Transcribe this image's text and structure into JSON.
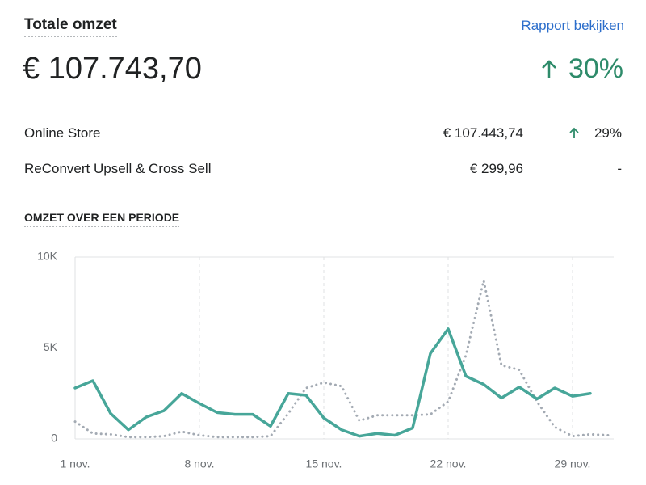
{
  "header": {
    "title": "Totale omzet",
    "link": "Rapport bekijken",
    "total": "€ 107.743,70",
    "change": "30%"
  },
  "table": {
    "rows": [
      [
        "Online Store",
        "€ 107.443,74",
        "29%"
      ],
      [
        "ReConvert Upsell & Cross Sell",
        "€ 299,96",
        "-"
      ]
    ]
  },
  "section_title": "OMZET OVER EEN PERIODE",
  "chart_data": {
    "type": "line",
    "categories": [
      "1 nov.",
      null,
      null,
      null,
      null,
      null,
      null,
      "8 nov.",
      null,
      null,
      null,
      null,
      null,
      null,
      "15 nov.",
      null,
      null,
      null,
      null,
      null,
      null,
      "22 nov.",
      null,
      null,
      null,
      null,
      null,
      null,
      "29 nov.",
      null,
      null
    ],
    "series": [
      {
        "color": "#47a699",
        "style": "solid",
        "values": [
          2800,
          3200,
          1400,
          500,
          1200,
          1550,
          2500,
          1950,
          1450,
          1350,
          1350,
          700,
          2500,
          2400,
          1150,
          500,
          150,
          300,
          200,
          600,
          4700,
          6050,
          3450,
          3000,
          2250,
          2850,
          2200,
          2800,
          2350,
          2500,
          null
        ]
      },
      {
        "color": "#a3aab3",
        "style": "dotted",
        "values": [
          950,
          300,
          250,
          100,
          100,
          150,
          400,
          200,
          100,
          100,
          100,
          150,
          1400,
          2800,
          3100,
          2900,
          1000,
          1300,
          1300,
          1300,
          1350,
          2050,
          4600,
          8700,
          4050,
          3800,
          2050,
          650,
          150,
          250,
          200
        ]
      }
    ],
    "ylim": [
      0,
      10000
    ],
    "yticks": [
      0,
      {
        "value": 5000,
        "label": "5K"
      },
      {
        "value": 10000,
        "label": "10K"
      }
    ],
    "grid": true
  }
}
